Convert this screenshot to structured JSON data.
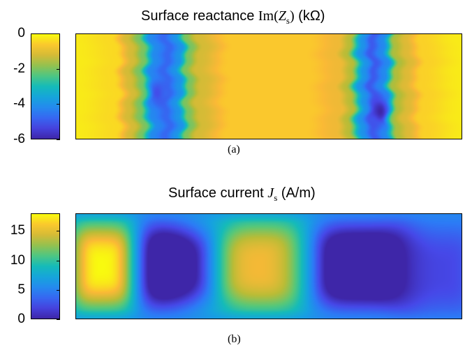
{
  "chart_data": [
    {
      "type": "heatmap",
      "title": "Surface reactance Im(Zs) (kΩ)",
      "title_parts": {
        "pre": "Surface reactance ",
        "func": "Im(",
        "var": "Z",
        "sub": "s",
        "post_paren": ")",
        "unit": " (kΩ)"
      },
      "caption": "(a)",
      "colorbar": {
        "ticks": [
          "0",
          "-2",
          "-4",
          "-6"
        ],
        "tick_values": [
          0,
          -2,
          -4,
          -6
        ],
        "range": [
          -6,
          0
        ],
        "colormap": "parula"
      },
      "profile_x": [
        0.0,
        0.1,
        0.14,
        0.17,
        0.2,
        0.235,
        0.265,
        0.29,
        0.32,
        0.4,
        0.6,
        0.68,
        0.71,
        0.745,
        0.77,
        0.8,
        0.83,
        0.86,
        0.9,
        1.0
      ],
      "profile_values": [
        -0.2,
        -0.4,
        -1.2,
        -2.0,
        -4.2,
        -4.8,
        -4.0,
        -2.0,
        -1.2,
        -0.6,
        -0.6,
        -0.9,
        -1.5,
        -4.0,
        -5.0,
        -4.2,
        -1.6,
        -1.1,
        -0.5,
        -0.2
      ],
      "hotspots": [
        {
          "x": 0.79,
          "y": 0.74,
          "value": -6.0
        },
        {
          "x": 0.21,
          "y": 0.56,
          "value": -5.2
        }
      ],
      "colors": {
        "high": "#f9fb0e",
        "low": "#3e26a8"
      }
    },
    {
      "type": "heatmap",
      "title": "Surface current Js (A/m)",
      "title_parts": {
        "pre": "Surface current ",
        "var": "J",
        "sub": "s",
        "unit": " (A/m)"
      },
      "caption": "(b)",
      "colorbar": {
        "ticks": [
          "15",
          "10",
          "5",
          "0"
        ],
        "tick_values": [
          15,
          10,
          5,
          0
        ],
        "range": [
          0,
          18
        ],
        "colormap": "parula"
      },
      "background_value": 6.0,
      "lobes": [
        {
          "x": 0.07,
          "y": 0.5,
          "rx": 0.09,
          "ry": 0.45,
          "peak": 18.0
        },
        {
          "x": 0.455,
          "y": 0.5,
          "rx": 0.16,
          "ry": 0.48,
          "peak": 15.5
        },
        {
          "x": 0.27,
          "y": 0.5,
          "rx": 0.12,
          "ry": 0.42,
          "peak": -4.5
        },
        {
          "x": 0.73,
          "y": 0.5,
          "rx": 0.13,
          "ry": 0.42,
          "peak": -4.0
        },
        {
          "x": 0.94,
          "y": 0.55,
          "rx": 0.12,
          "ry": 0.5,
          "peak": 2.0
        }
      ],
      "colors": {
        "high": "#f9fb0e",
        "low": "#3e26a8"
      }
    }
  ]
}
